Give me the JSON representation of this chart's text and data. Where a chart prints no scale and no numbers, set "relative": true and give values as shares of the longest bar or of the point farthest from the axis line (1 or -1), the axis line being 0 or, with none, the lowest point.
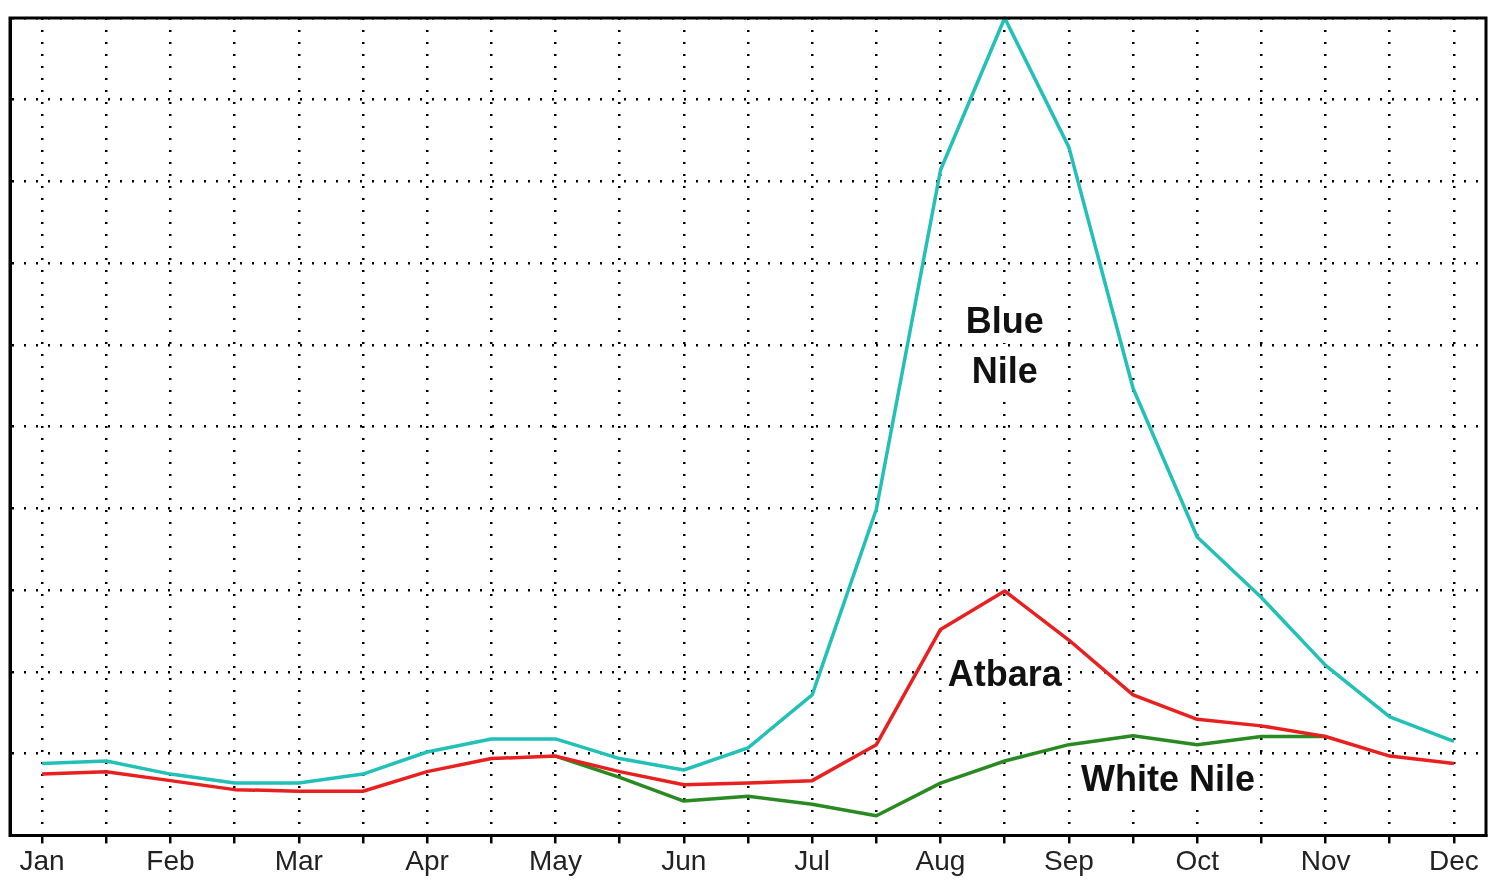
{
  "chart_data": {
    "type": "line",
    "relative": true,
    "legend": false,
    "grid": true,
    "line_style": "solid",
    "marker": "none",
    "categories": [
      "Jan",
      null,
      "Feb",
      null,
      "Mar",
      null,
      "Apr",
      null,
      "May",
      null,
      "Jun",
      null,
      "Jul",
      null,
      "Aug",
      null,
      "Sep",
      null,
      "Oct",
      null,
      "Nov",
      null,
      "Dec"
    ],
    "series": [
      {
        "name": "Blue Nile",
        "color": "#22c0b6",
        "values": [
          0.088,
          0.091,
          0.075,
          0.064,
          0.064,
          0.075,
          0.102,
          0.118,
          0.118,
          0.094,
          0.08,
          0.107,
          0.172,
          0.399,
          0.814,
          1,
          0.842,
          0.547,
          0.365,
          0.291,
          0.208,
          0.145,
          0.115
        ]
      },
      {
        "name": "Atbara",
        "color": "#e82020",
        "values": [
          0.075,
          0.078,
          0.067,
          0.056,
          0.054,
          0.054,
          0.078,
          0.094,
          0.097,
          0.078,
          0.062,
          0.064,
          0.067,
          0.111,
          0.252,
          0.299,
          0.239,
          0.172,
          0.142,
          0.134,
          0.121,
          0.097,
          0.088
        ]
      },
      {
        "name": "White Nile",
        "color": "#2a8a22",
        "values": [
          null,
          null,
          null,
          null,
          null,
          null,
          null,
          null,
          0.097,
          0.071,
          0.042,
          0.048,
          0.038,
          0.024,
          0.064,
          0.091,
          0.111,
          0.122,
          0.111,
          0.121,
          0.121,
          null,
          null
        ]
      }
    ]
  }
}
